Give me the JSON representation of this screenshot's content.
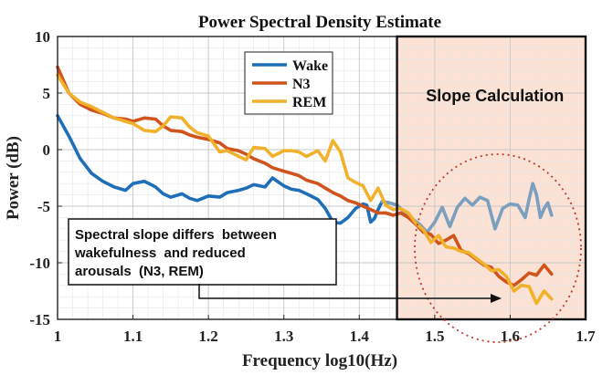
{
  "chart_data": {
    "type": "line",
    "title": "Power Spectral Density Estimate",
    "xlabel": "Frequency log10(Hz)",
    "ylabel": "Power (dB)",
    "xlim": [
      1,
      1.7
    ],
    "ylim": [
      -15,
      10
    ],
    "xticks": [
      1,
      1.1,
      1.2,
      1.3,
      1.4,
      1.5,
      1.6,
      1.7
    ],
    "xtick_labels": [
      "1",
      "1.1",
      "1.2",
      "1.3",
      "1.4",
      "1.5",
      "1.6",
      "1.7"
    ],
    "yticks": [
      10,
      5,
      0,
      -5,
      -10,
      -15
    ],
    "ytick_labels": [
      "10",
      "5",
      "0",
      "-5",
      "-10",
      "-15"
    ],
    "grid": true,
    "legend_position": "top-center",
    "series": [
      {
        "name": "Wake",
        "color": "#1f6fb8",
        "highlight_color": "#7b9fbf",
        "x": [
          1.0,
          1.015,
          1.03,
          1.045,
          1.06,
          1.075,
          1.09,
          1.1,
          1.115,
          1.13,
          1.14,
          1.15,
          1.165,
          1.175,
          1.185,
          1.2,
          1.215,
          1.225,
          1.24,
          1.25,
          1.26,
          1.275,
          1.285,
          1.3,
          1.31,
          1.32,
          1.33,
          1.345,
          1.355,
          1.365,
          1.375,
          1.385,
          1.395,
          1.405,
          1.41,
          1.415,
          1.42,
          1.425,
          1.43,
          1.44,
          1.45,
          1.46,
          1.47,
          1.48,
          1.49,
          1.5,
          1.51,
          1.52,
          1.53,
          1.54,
          1.55,
          1.56,
          1.57,
          1.58,
          1.59,
          1.6,
          1.61,
          1.62,
          1.625,
          1.63,
          1.635,
          1.64,
          1.645,
          1.65,
          1.655
        ],
        "y": [
          3.0,
          1.2,
          -0.8,
          -2.1,
          -2.8,
          -3.3,
          -3.6,
          -3.0,
          -2.8,
          -3.3,
          -3.9,
          -4.2,
          -3.9,
          -4.3,
          -4.5,
          -4.1,
          -4.2,
          -3.8,
          -3.6,
          -3.4,
          -3.1,
          -3.3,
          -2.5,
          -3.2,
          -3.5,
          -3.6,
          -3.9,
          -4.4,
          -5.2,
          -6.4,
          -6.5,
          -6.0,
          -5.2,
          -4.8,
          -4.9,
          -6.4,
          -6.1,
          -5.3,
          -4.6,
          -4.7,
          -4.9,
          -5.5,
          -6.1,
          -6.6,
          -7.3,
          -6.4,
          -5.1,
          -6.8,
          -5.1,
          -4.3,
          -4.9,
          -4.2,
          -4.5,
          -7.0,
          -5.2,
          -4.8,
          -4.9,
          -6.0,
          -4.4,
          -3.0,
          -4.0,
          -6.0,
          -5.2,
          -4.7,
          -5.8
        ]
      },
      {
        "name": "N3",
        "color": "#d0541b",
        "highlight_color": "#d0541b",
        "x": [
          1.0,
          1.015,
          1.03,
          1.045,
          1.06,
          1.075,
          1.09,
          1.1,
          1.115,
          1.13,
          1.14,
          1.15,
          1.165,
          1.175,
          1.185,
          1.2,
          1.215,
          1.225,
          1.24,
          1.25,
          1.26,
          1.275,
          1.285,
          1.3,
          1.31,
          1.32,
          1.33,
          1.345,
          1.355,
          1.365,
          1.375,
          1.385,
          1.395,
          1.405,
          1.415,
          1.425,
          1.435,
          1.445,
          1.455,
          1.465,
          1.475,
          1.485,
          1.495,
          1.505,
          1.515,
          1.525,
          1.535,
          1.545,
          1.555,
          1.565,
          1.575,
          1.585,
          1.595,
          1.605,
          1.615,
          1.625,
          1.635,
          1.645,
          1.655
        ],
        "y": [
          7.3,
          5.0,
          4.0,
          3.5,
          3.2,
          2.8,
          2.7,
          2.5,
          2.8,
          2.7,
          2.1,
          1.7,
          1.6,
          1.3,
          1.1,
          0.9,
          0.6,
          0.1,
          -0.1,
          -0.4,
          -0.8,
          -1.2,
          -1.6,
          -1.9,
          -2.1,
          -2.3,
          -2.7,
          -3.0,
          -3.4,
          -3.8,
          -4.1,
          -4.5,
          -4.7,
          -5.0,
          -5.3,
          -5.6,
          -5.6,
          -5.8,
          -5.6,
          -6.0,
          -6.6,
          -7.3,
          -7.5,
          -8.3,
          -8.0,
          -7.6,
          -8.9,
          -9.2,
          -9.7,
          -10.2,
          -10.4,
          -11.2,
          -11.7,
          -12.0,
          -11.5,
          -10.9,
          -11.1,
          -10.2,
          -11.0
        ]
      },
      {
        "name": "REM",
        "color": "#f2b12b",
        "highlight_color": "#f2b12b",
        "x": [
          1.0,
          1.015,
          1.03,
          1.045,
          1.06,
          1.075,
          1.09,
          1.1,
          1.115,
          1.13,
          1.14,
          1.15,
          1.165,
          1.175,
          1.185,
          1.2,
          1.215,
          1.225,
          1.24,
          1.25,
          1.26,
          1.275,
          1.285,
          1.3,
          1.31,
          1.32,
          1.33,
          1.345,
          1.355,
          1.365,
          1.375,
          1.385,
          1.395,
          1.405,
          1.415,
          1.425,
          1.435,
          1.445,
          1.455,
          1.465,
          1.475,
          1.485,
          1.495,
          1.505,
          1.515,
          1.525,
          1.535,
          1.545,
          1.555,
          1.565,
          1.575,
          1.585,
          1.595,
          1.605,
          1.615,
          1.625,
          1.635,
          1.645,
          1.655
        ],
        "y": [
          6.6,
          5.0,
          4.2,
          3.8,
          3.3,
          2.8,
          2.5,
          2.3,
          1.7,
          1.6,
          2.1,
          2.9,
          2.8,
          2.0,
          1.5,
          1.2,
          -0.2,
          -0.1,
          -0.6,
          -0.9,
          0.2,
          0.1,
          -0.6,
          -0.1,
          -0.1,
          -0.2,
          -0.6,
          -0.1,
          -1.0,
          0.8,
          -0.2,
          -2.5,
          -2.9,
          -3.2,
          -4.5,
          -3.4,
          -4.9,
          -5.3,
          -5.2,
          -5.6,
          -6.5,
          -7.1,
          -8.2,
          -7.6,
          -8.6,
          -8.7,
          -9.0,
          -9.1,
          -9.6,
          -10.1,
          -10.7,
          -10.6,
          -11.2,
          -12.5,
          -12.0,
          -12.1,
          -13.6,
          -12.5,
          -13.2
        ]
      }
    ],
    "highlight_region": {
      "x_start": 1.45,
      "x_end": 1.7,
      "label": "Slope Calculation",
      "fill": "#fbe2d5"
    },
    "annotation": {
      "lines": [
        "Spectral slope differs  between",
        "wakefulness  and reduced",
        "arousals  (N3, REM)"
      ]
    }
  }
}
